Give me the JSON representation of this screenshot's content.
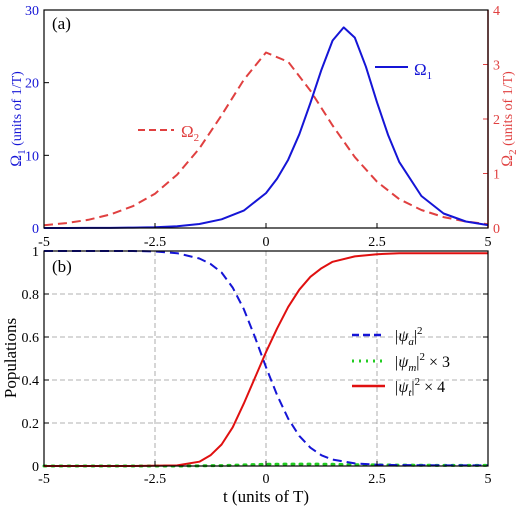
{
  "chart_data": [
    {
      "type": "line",
      "panel_label": "(a)",
      "xlim": [
        -5,
        5
      ],
      "x_ticks": [
        "-5",
        "-2.5",
        "0",
        "2.5",
        "5"
      ],
      "ylim_left": [
        0,
        30
      ],
      "y_ticks_left": [
        "0",
        "10",
        "20",
        "30"
      ],
      "ylim_right": [
        0,
        4
      ],
      "y_ticks_right": [
        "0",
        "1",
        "2",
        "3",
        "4"
      ],
      "ylabel_left_main": "Ω",
      "ylabel_left_sub": "1",
      "ylabel_left_units": " (units of 1/T)",
      "ylabel_right_main": "Ω",
      "ylabel_right_sub": "2",
      "ylabel_right_units": " (units of 1/T)",
      "grid": false,
      "series": [
        {
          "name_main": "Ω",
          "name_sub": "1",
          "axis": "left",
          "color": "#1515d6",
          "style": "solid",
          "x": [
            -5,
            -4.5,
            -4,
            -3.5,
            -3,
            -2.5,
            -2,
            -1.5,
            -1,
            -0.5,
            0,
            0.25,
            0.5,
            0.75,
            1,
            1.25,
            1.5,
            1.75,
            2,
            2.25,
            2.5,
            2.75,
            3,
            3.5,
            4,
            4.5,
            5
          ],
          "y": [
            0,
            0,
            0.01,
            0.02,
            0.05,
            0.1,
            0.25,
            0.55,
            1.2,
            2.4,
            4.8,
            6.8,
            9.4,
            12.9,
            17.2,
            21.8,
            25.8,
            27.6,
            26.2,
            22.2,
            17.3,
            12.8,
            9.1,
            4.4,
            2.0,
            0.9,
            0.4
          ]
        },
        {
          "name_main": "Ω",
          "name_sub": "2",
          "axis": "right",
          "color": "#e04040",
          "style": "dashed",
          "x": [
            -5,
            -4.5,
            -4,
            -3.5,
            -3,
            -2.5,
            -2,
            -1.5,
            -1,
            -0.5,
            0,
            0.5,
            1,
            1.5,
            2,
            2.5,
            3,
            3.5,
            4,
            4.5,
            5
          ],
          "y": [
            0.05,
            0.09,
            0.15,
            0.25,
            0.4,
            0.63,
            0.98,
            1.46,
            2.07,
            2.72,
            3.22,
            3.05,
            2.52,
            1.88,
            1.3,
            0.85,
            0.53,
            0.33,
            0.2,
            0.12,
            0.07
          ]
        }
      ]
    },
    {
      "type": "line",
      "panel_label": "(b)",
      "xlim": [
        -5,
        5
      ],
      "x_ticks": [
        "-5",
        "-2.5",
        "0",
        "2.5",
        "5"
      ],
      "xlabel": "t (units of T)",
      "ylim": [
        0,
        1
      ],
      "y_ticks": [
        "0",
        "0.2",
        "0.4",
        "0.6",
        "0.8",
        "1"
      ],
      "ylabel": "Populations",
      "grid": true,
      "legend_position": "center-right",
      "series": [
        {
          "name_parts": [
            "|ψ",
            "a",
            "|",
            "2",
            ""
          ],
          "color": "#1515d6",
          "style": "dashed",
          "x": [
            -5,
            -4,
            -3,
            -2.5,
            -2,
            -1.5,
            -1.25,
            -1,
            -0.75,
            -0.5,
            -0.25,
            0,
            0.25,
            0.5,
            0.75,
            1,
            1.25,
            1.5,
            2,
            2.5,
            3,
            4,
            5
          ],
          "y": [
            1,
            1,
            1,
            0.998,
            0.99,
            0.965,
            0.94,
            0.9,
            0.83,
            0.73,
            0.6,
            0.46,
            0.33,
            0.22,
            0.14,
            0.085,
            0.05,
            0.03,
            0.012,
            0.006,
            0.004,
            0.003,
            0.003
          ]
        },
        {
          "name_parts": [
            "|ψ",
            "m",
            "|",
            "2",
            " × 3"
          ],
          "color": "#22cc22",
          "style": "dotted",
          "x": [
            -5,
            -2,
            -1,
            -0.5,
            0,
            0.5,
            1,
            1.5,
            2,
            3,
            4,
            5
          ],
          "y": [
            0,
            0,
            0.002,
            0.005,
            0.008,
            0.009,
            0.009,
            0.008,
            0.006,
            0.004,
            0.003,
            0.003
          ]
        },
        {
          "name_parts": [
            "|ψ",
            "t",
            "|",
            "2",
            " × 4"
          ],
          "color": "#e01010",
          "style": "solid",
          "x": [
            -5,
            -3,
            -2,
            -1.5,
            -1.25,
            -1,
            -0.75,
            -0.5,
            -0.25,
            0,
            0.25,
            0.5,
            0.75,
            1,
            1.25,
            1.5,
            2,
            2.5,
            3,
            4,
            5
          ],
          "y": [
            0,
            0,
            0.003,
            0.02,
            0.05,
            0.1,
            0.18,
            0.29,
            0.41,
            0.53,
            0.64,
            0.74,
            0.82,
            0.88,
            0.92,
            0.95,
            0.975,
            0.985,
            0.99,
            0.99,
            0.99
          ]
        }
      ]
    }
  ]
}
